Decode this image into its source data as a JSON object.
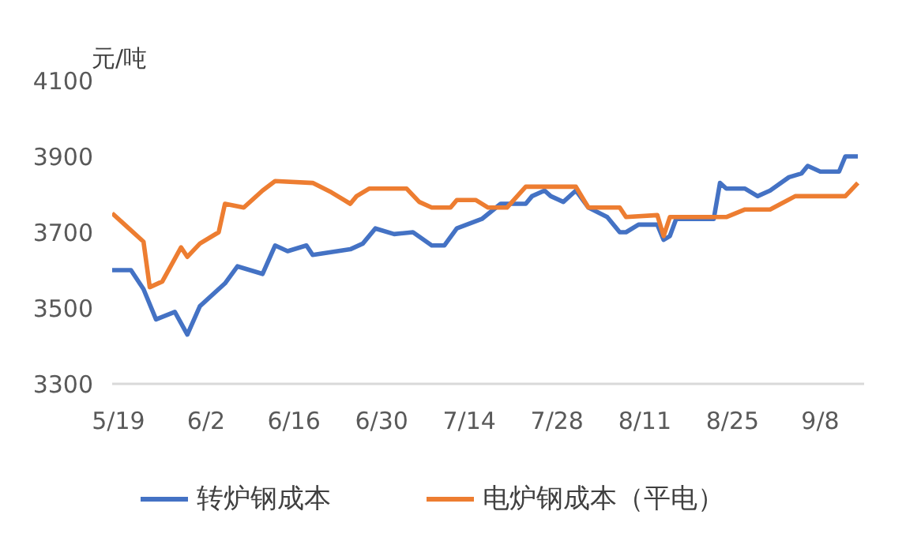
{
  "chart_data": {
    "type": "line",
    "ylabel": "元/吨",
    "legend": "bottom",
    "xlim": [
      "--05-18",
      "--09-15"
    ],
    "ylim": [
      3300,
      4100
    ],
    "yticks": [
      3300,
      3500,
      3700,
      3900,
      4100
    ],
    "xticks": [
      {
        "value": "--05-19",
        "label": "5/19"
      },
      {
        "value": "--06-02",
        "label": "6/2"
      },
      {
        "value": "--06-16",
        "label": "6/16"
      },
      {
        "value": "--06-30",
        "label": "6/30"
      },
      {
        "value": "--07-14",
        "label": "7/14"
      },
      {
        "value": "--07-28",
        "label": "7/28"
      },
      {
        "value": "--08-11",
        "label": "8/11"
      },
      {
        "value": "--08-25",
        "label": "8/25"
      },
      {
        "value": "--09-08",
        "label": "9/8"
      }
    ],
    "series": [
      {
        "name": "转炉钢成本",
        "color": "#4472c4",
        "x": [
          "--05-18",
          "--05-21",
          "--05-23",
          "--05-25",
          "--05-28",
          "--05-30",
          "--06-01",
          "--06-05",
          "--06-07",
          "--06-11",
          "--06-13",
          "--06-15",
          "--06-18",
          "--06-19",
          "--06-25",
          "--06-27",
          "--06-29",
          "--07-02",
          "--07-05",
          "--07-08",
          "--07-10",
          "--07-12",
          "--07-16",
          "--07-19",
          "--07-23",
          "--07-24",
          "--07-26",
          "--07-27",
          "--07-29",
          "--07-31",
          "--08-02",
          "--08-05",
          "--08-07",
          "--08-08",
          "--08-10",
          "--08-13",
          "--08-14",
          "--08-15",
          "--08-16",
          "--08-22",
          "--08-23",
          "--08-24",
          "--08-27",
          "--08-29",
          "--08-31",
          "--09-03",
          "--09-05",
          "--09-06",
          "--09-08",
          "--09-11",
          "--09-12",
          "--09-14"
        ],
        "values": [
          3600,
          3600,
          3550,
          3470,
          3490,
          3430,
          3505,
          3565,
          3610,
          3590,
          3665,
          3650,
          3665,
          3640,
          3655,
          3670,
          3710,
          3695,
          3700,
          3665,
          3665,
          3710,
          3735,
          3775,
          3775,
          3795,
          3810,
          3795,
          3780,
          3810,
          3765,
          3740,
          3700,
          3700,
          3720,
          3720,
          3680,
          3690,
          3735,
          3735,
          3830,
          3815,
          3815,
          3795,
          3810,
          3845,
          3855,
          3875,
          3860,
          3860,
          3900,
          3900
        ]
      },
      {
        "name": "电炉钢成本（平电）",
        "color": "#ed7d31",
        "x": [
          "--05-18",
          "--05-20",
          "--05-23",
          "--05-24",
          "--05-26",
          "--05-29",
          "--05-30",
          "--06-01",
          "--06-04",
          "--06-05",
          "--06-08",
          "--06-11",
          "--06-13",
          "--06-19",
          "--06-22",
          "--06-25",
          "--06-26",
          "--06-28",
          "--07-04",
          "--07-06",
          "--07-08",
          "--07-11",
          "--07-12",
          "--07-15",
          "--07-17",
          "--07-20",
          "--07-23",
          "--07-31",
          "--08-02",
          "--08-07",
          "--08-08",
          "--08-13",
          "--08-14",
          "--08-15",
          "--08-24",
          "--08-27",
          "--08-31",
          "--09-04",
          "--09-12",
          "--09-14"
        ],
        "values": [
          3750,
          3720,
          3675,
          3555,
          3570,
          3660,
          3635,
          3670,
          3700,
          3775,
          3765,
          3810,
          3835,
          3830,
          3805,
          3775,
          3795,
          3815,
          3815,
          3780,
          3765,
          3765,
          3785,
          3785,
          3765,
          3765,
          3820,
          3820,
          3765,
          3765,
          3740,
          3745,
          3690,
          3740,
          3740,
          3760,
          3760,
          3795,
          3795,
          3830
        ]
      }
    ]
  }
}
